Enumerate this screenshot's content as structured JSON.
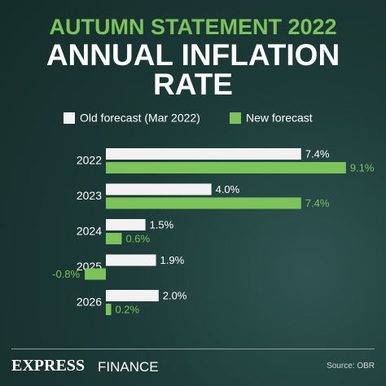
{
  "supertitle": "AUTUMN STATEMENT 2022",
  "chart_data": {
    "type": "bar",
    "orientation": "horizontal",
    "title": "ANNUAL INFLATION RATE",
    "categories": [
      "2022",
      "2023",
      "2024",
      "2025",
      "2026"
    ],
    "series": [
      {
        "name": "Old forecast (Mar 2022)",
        "color": "#f2f2f2",
        "values": [
          7.4,
          4.0,
          1.5,
          1.9,
          2.0
        ],
        "value_labels": [
          "7.4%",
          "4.0%",
          "1.5%",
          "1.9%",
          "2.0%"
        ]
      },
      {
        "name": "New forecast",
        "color": "#7dc35b",
        "values": [
          9.1,
          7.4,
          0.6,
          -0.8,
          0.2
        ],
        "value_labels": [
          "9.1%",
          "7.4%",
          "0.6%",
          "-0.8%",
          "0.2%"
        ]
      }
    ]
  },
  "footer": {
    "brand": "EXPRESS",
    "section": "FINANCE",
    "source": "Source: OBR"
  }
}
